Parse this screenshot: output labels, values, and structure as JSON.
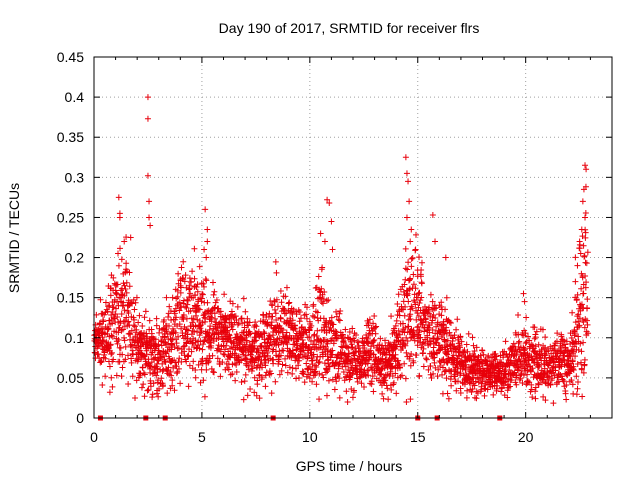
{
  "chart_data": {
    "type": "scatter",
    "title": "Day 190 of 2017, SRMTID for receiver flrs",
    "xlabel": "GPS time / hours",
    "ylabel": "SRMTID / TECUs",
    "xlim": [
      0,
      24
    ],
    "ylim": [
      0,
      0.45
    ],
    "xticks": [
      "0",
      "5",
      "10",
      "15",
      "20"
    ],
    "yticks": [
      "0",
      "0.05",
      "0.1",
      "0.15",
      "0.2",
      "0.25",
      "0.3",
      "0.35",
      "0.4",
      "0.45"
    ],
    "grid": true,
    "marker": "+",
    "color": "#e8000b",
    "gap_markers_x": [
      0.3,
      2.4,
      3.3,
      8.3,
      15.0,
      15.9,
      18.8
    ],
    "envelope_hours": [
      0,
      0.5,
      1,
      1.5,
      2,
      2.5,
      3,
      3.5,
      4,
      4.5,
      5,
      5.5,
      6,
      6.5,
      7,
      7.5,
      8,
      8.5,
      9,
      9.5,
      10,
      10.5,
      11,
      11.5,
      12,
      12.5,
      13,
      13.5,
      14,
      14.5,
      15,
      15.5,
      16,
      16.5,
      17,
      17.5,
      18,
      18.5,
      19,
      19.5,
      20,
      20.5,
      21,
      21.5,
      22,
      22.5,
      23
    ],
    "typical_values": [
      0.09,
      0.1,
      0.12,
      0.13,
      0.09,
      0.075,
      0.075,
      0.09,
      0.12,
      0.12,
      0.11,
      0.11,
      0.1,
      0.095,
      0.085,
      0.08,
      0.09,
      0.11,
      0.105,
      0.09,
      0.09,
      0.11,
      0.09,
      0.075,
      0.07,
      0.075,
      0.08,
      0.065,
      0.085,
      0.12,
      0.13,
      0.1,
      0.1,
      0.08,
      0.07,
      0.06,
      0.06,
      0.055,
      0.06,
      0.07,
      0.075,
      0.07,
      0.065,
      0.07,
      0.065,
      0.12,
      0.2
    ],
    "spread_values": [
      0.015,
      0.025,
      0.045,
      0.045,
      0.03,
      0.025,
      0.025,
      0.03,
      0.04,
      0.035,
      0.035,
      0.03,
      0.025,
      0.025,
      0.025,
      0.025,
      0.03,
      0.03,
      0.03,
      0.025,
      0.025,
      0.045,
      0.03,
      0.025,
      0.02,
      0.02,
      0.025,
      0.02,
      0.03,
      0.045,
      0.045,
      0.03,
      0.03,
      0.025,
      0.02,
      0.015,
      0.015,
      0.012,
      0.015,
      0.02,
      0.025,
      0.02,
      0.02,
      0.02,
      0.02,
      0.06,
      0.07
    ],
    "data_extent_hours": [
      0,
      22.9
    ],
    "sampling_interval_hours": 0.01,
    "outliers": [
      {
        "x": 2.5,
        "y": 0.4
      },
      {
        "x": 2.5,
        "y": 0.373
      },
      {
        "x": 2.5,
        "y": 0.302
      },
      {
        "x": 2.55,
        "y": 0.27
      },
      {
        "x": 2.55,
        "y": 0.25
      },
      {
        "x": 2.6,
        "y": 0.24
      },
      {
        "x": 1.15,
        "y": 0.275
      },
      {
        "x": 1.2,
        "y": 0.255
      },
      {
        "x": 1.2,
        "y": 0.25
      },
      {
        "x": 1.4,
        "y": 0.22
      },
      {
        "x": 1.7,
        "y": 0.225
      },
      {
        "x": 5.15,
        "y": 0.26
      },
      {
        "x": 5.25,
        "y": 0.235
      },
      {
        "x": 5.25,
        "y": 0.22
      },
      {
        "x": 5.1,
        "y": 0.21
      },
      {
        "x": 5.2,
        "y": 0.2
      },
      {
        "x": 10.8,
        "y": 0.272
      },
      {
        "x": 10.9,
        "y": 0.268
      },
      {
        "x": 11.0,
        "y": 0.245
      },
      {
        "x": 10.5,
        "y": 0.23
      },
      {
        "x": 10.7,
        "y": 0.22
      },
      {
        "x": 11.05,
        "y": 0.21
      },
      {
        "x": 14.45,
        "y": 0.325
      },
      {
        "x": 14.5,
        "y": 0.305
      },
      {
        "x": 14.55,
        "y": 0.295
      },
      {
        "x": 14.6,
        "y": 0.27
      },
      {
        "x": 14.5,
        "y": 0.25
      },
      {
        "x": 14.7,
        "y": 0.235
      },
      {
        "x": 14.65,
        "y": 0.22
      },
      {
        "x": 14.9,
        "y": 0.21
      },
      {
        "x": 15.7,
        "y": 0.253
      },
      {
        "x": 15.8,
        "y": 0.22
      },
      {
        "x": 16.3,
        "y": 0.2
      },
      {
        "x": 19.9,
        "y": 0.155
      },
      {
        "x": 19.95,
        "y": 0.145
      },
      {
        "x": 22.75,
        "y": 0.315
      },
      {
        "x": 22.8,
        "y": 0.31
      },
      {
        "x": 22.7,
        "y": 0.285
      },
      {
        "x": 22.65,
        "y": 0.27
      },
      {
        "x": 22.75,
        "y": 0.25
      },
      {
        "x": 22.6,
        "y": 0.235
      },
      {
        "x": 22.5,
        "y": 0.22
      },
      {
        "x": 22.55,
        "y": 0.205
      },
      {
        "x": 22.4,
        "y": 0.19
      },
      {
        "x": 1.9,
        "y": 0.025
      },
      {
        "x": 11.75,
        "y": 0.02
      },
      {
        "x": 13.35,
        "y": 0.03
      },
      {
        "x": 22.2,
        "y": 0.03
      }
    ]
  }
}
